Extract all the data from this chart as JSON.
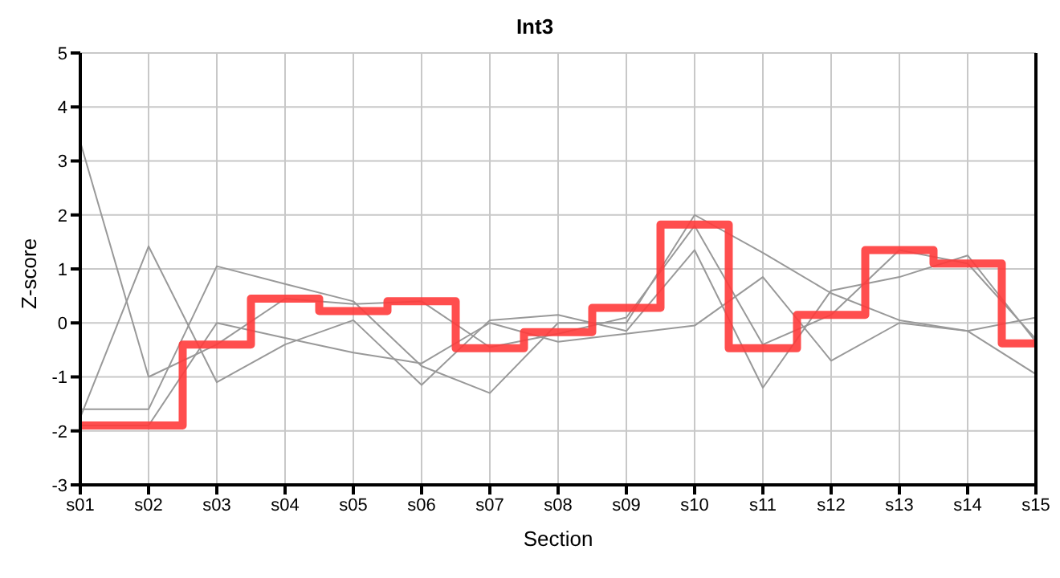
{
  "chart_data": {
    "type": "line",
    "title": "Int3",
    "xlabel": "Section",
    "ylabel": "Z-score",
    "categories": [
      "s01",
      "s02",
      "s03",
      "s04",
      "s05",
      "s06",
      "s07",
      "s08",
      "s09",
      "s10",
      "s11",
      "s12",
      "s13",
      "s14",
      "s15"
    ],
    "ylim": [
      -3,
      5
    ],
    "yticks": [
      -3,
      -2,
      -1,
      0,
      1,
      2,
      3,
      4,
      5
    ],
    "grid": true,
    "legend": false,
    "marker": "none",
    "series": [
      {
        "color": "#999999",
        "values": [
          3.35,
          -1.0,
          -0.4,
          0.45,
          0.35,
          0.4,
          -0.45,
          -0.2,
          0.1,
          1.8,
          -0.4,
          0.15,
          1.35,
          1.1,
          -0.3
        ]
      },
      {
        "color": "#999999",
        "values": [
          -1.75,
          1.42,
          -1.1,
          -0.4,
          0.05,
          -1.15,
          0.05,
          0.15,
          -0.15,
          1.35,
          -1.2,
          0.6,
          0.85,
          1.25,
          -0.35
        ]
      },
      {
        "color": "#999999",
        "values": [
          -1.6,
          -1.6,
          1.05,
          0.72,
          0.4,
          -0.8,
          -1.3,
          0.0,
          0.0,
          2.0,
          1.3,
          0.55,
          0.05,
          -0.15,
          -0.95
        ]
      },
      {
        "color": "#999999",
        "values": [
          -1.9,
          -1.9,
          0.0,
          -0.28,
          -0.55,
          -0.75,
          0.0,
          -0.35,
          -0.2,
          -0.05,
          0.85,
          -0.7,
          0.0,
          -0.15,
          0.1
        ]
      },
      {
        "type": "step",
        "color": "#ff3b3b",
        "values": [
          -1.9,
          -1.9,
          -0.4,
          0.45,
          0.22,
          0.4,
          -0.47,
          -0.17,
          0.28,
          1.82,
          -0.47,
          0.15,
          1.35,
          1.1,
          -0.38
        ]
      }
    ]
  }
}
